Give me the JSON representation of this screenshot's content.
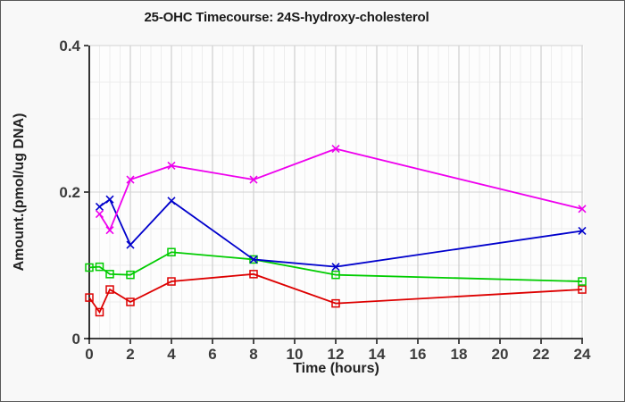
{
  "chart_data": {
    "type": "line",
    "title": "25-OHC Timecourse: 24S-hydroxy-cholesterol",
    "xlabel": "Time (hours)",
    "ylabel": "Amount.(pmol/ug DNA)",
    "xlim": [
      0,
      24
    ],
    "ylim": [
      0,
      0.4
    ],
    "xticks": [
      0,
      2,
      4,
      6,
      8,
      10,
      12,
      14,
      16,
      18,
      20,
      22,
      24
    ],
    "yticks": [
      0,
      0.2,
      0.4
    ],
    "x_minor_step": 0.5,
    "y_minor_step": 0.05,
    "grid": true,
    "legend_position": "none",
    "series": [
      {
        "name": "red-open-squares",
        "color": "#dd0000",
        "marker": "square",
        "x": [
          0,
          0.5,
          1,
          2,
          4,
          8,
          12,
          24
        ],
        "y": [
          0.056,
          0.036,
          0.067,
          0.05,
          0.078,
          0.088,
          0.048,
          0.067
        ]
      },
      {
        "name": "green-open-squares",
        "color": "#00cc00",
        "marker": "square",
        "x": [
          0,
          0.5,
          1,
          2,
          4,
          8,
          12,
          24
        ],
        "y": [
          0.097,
          0.098,
          0.088,
          0.087,
          0.118,
          0.108,
          0.087,
          0.078
        ]
      },
      {
        "name": "blue-x-markers",
        "color": "#0000cc",
        "marker": "x",
        "x": [
          0.5,
          1,
          2,
          4,
          8,
          12,
          24
        ],
        "y": [
          0.18,
          0.19,
          0.128,
          0.188,
          0.108,
          0.098,
          0.147
        ]
      },
      {
        "name": "magenta-x-markers",
        "color": "#ee00ee",
        "marker": "x",
        "x": [
          0.5,
          1,
          2,
          4,
          8,
          12,
          24
        ],
        "y": [
          0.17,
          0.148,
          0.217,
          0.236,
          0.217,
          0.259,
          0.177
        ]
      }
    ],
    "colors": {
      "plot_background": "#fdfdfd",
      "outer_background": "#f8f8f8",
      "grid_minor": "#ededed",
      "grid_major_v": "#c5c5c5",
      "grid_major_h": "#d2d2d2",
      "axis": "#000000",
      "tick_text": "#3c3c3c"
    }
  }
}
